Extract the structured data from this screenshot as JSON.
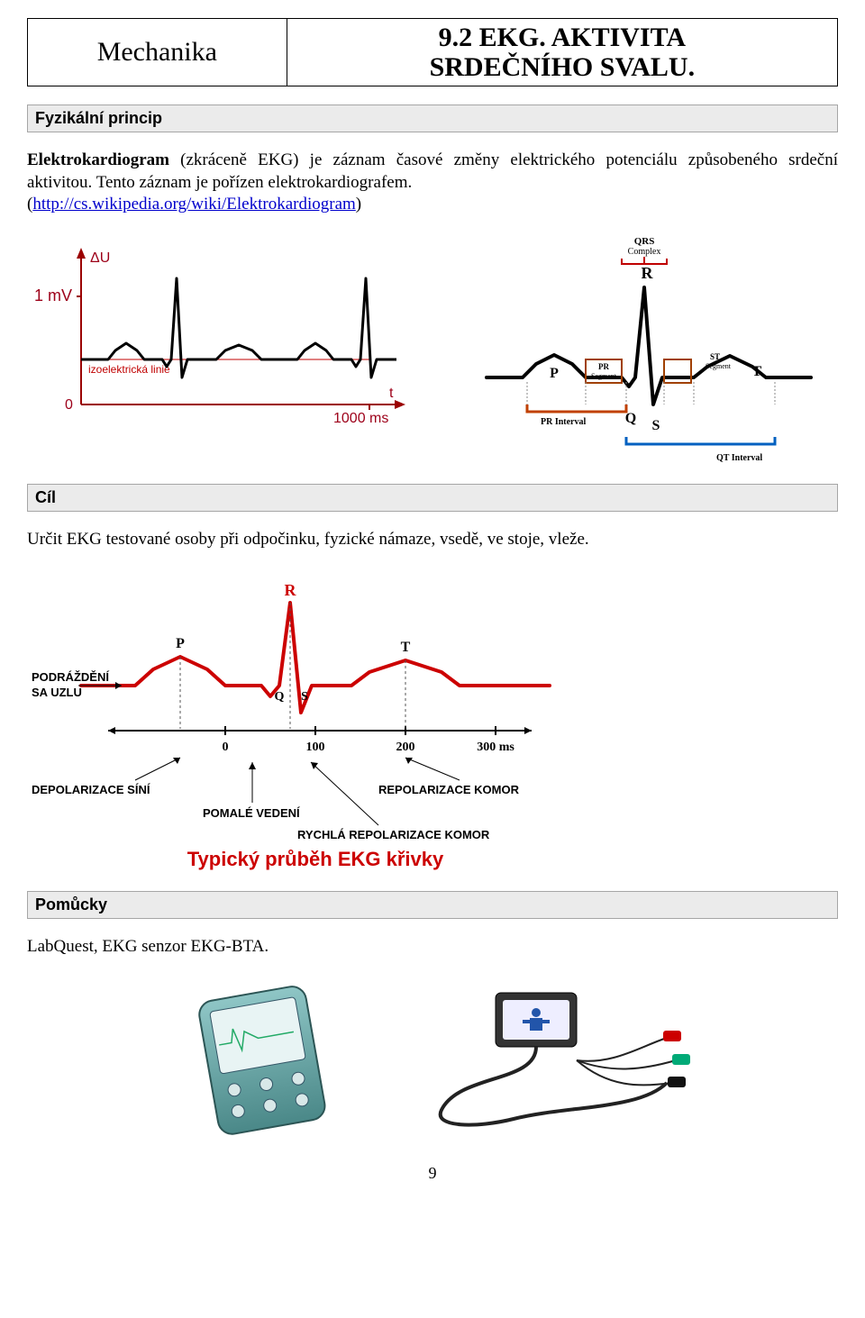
{
  "header": {
    "left": "Mechanika",
    "right_line1": "9.2 EKG. AKTIVITA",
    "right_line2": "SRDEČNÍHO SVALU."
  },
  "section1": {
    "title": "Fyzikální princip",
    "paragraph1_before_bold": "",
    "paragraph1_bold": "Elektrokardiogram",
    "paragraph1_after_bold": " (zkráceně EKG) je záznam časové změny elektrického potenciálu způsobeného srdeční aktivitou. Tento záznam je pořízen elektrokardiografem.",
    "link_prefix": " (",
    "link_text": "http://cs.wikipedia.org/wiki/Elektrokardiogram",
    "link_suffix": ")"
  },
  "fig_left": {
    "y_axis_label": "ΔU",
    "y_tick_1mv": "1 mV",
    "y_tick_0": "0",
    "izo_label": "izoelektrická linie",
    "x_axis_label": "t",
    "x_tick_1000": "1000 ms",
    "axis_color": "#9b0000",
    "line_color": "#000000",
    "izo_color": "#c00000",
    "text_color": "#9d0019",
    "curve": [
      [
        0,
        110
      ],
      [
        30,
        110
      ],
      [
        38,
        100
      ],
      [
        50,
        92
      ],
      [
        62,
        100
      ],
      [
        70,
        110
      ],
      [
        90,
        110
      ],
      [
        95,
        118
      ],
      [
        100,
        110
      ],
      [
        106,
        20
      ],
      [
        112,
        130
      ],
      [
        118,
        110
      ],
      [
        150,
        110
      ],
      [
        160,
        100
      ],
      [
        175,
        94
      ],
      [
        190,
        100
      ],
      [
        200,
        110
      ],
      [
        240,
        110
      ],
      [
        248,
        100
      ],
      [
        260,
        92
      ],
      [
        272,
        100
      ],
      [
        280,
        110
      ],
      [
        300,
        110
      ],
      [
        305,
        118
      ],
      [
        310,
        110
      ],
      [
        316,
        20
      ],
      [
        322,
        130
      ],
      [
        328,
        110
      ],
      [
        350,
        110
      ]
    ]
  },
  "fig_right": {
    "title": "QRS",
    "title2": "Complex",
    "labels": {
      "P": "P",
      "Q": "Q",
      "R": "R",
      "S": "S",
      "T": "T"
    },
    "pr_seg": "PR",
    "pr_seg2": "Segment",
    "st_seg": "ST",
    "st_seg2": "Segment",
    "pr_int": "PR Interval",
    "qt_int": "QT Interval",
    "colors": {
      "trace": "#000000",
      "qrs_bracket": "#c00000",
      "pr_seg": "#a04000",
      "st_seg": "#a04000",
      "pr_int": "#c04000",
      "qt_int": "#0060c0"
    },
    "curve": [
      [
        0,
        120
      ],
      [
        40,
        120
      ],
      [
        55,
        105
      ],
      [
        75,
        95
      ],
      [
        95,
        105
      ],
      [
        110,
        120
      ],
      [
        150,
        120
      ],
      [
        158,
        130
      ],
      [
        165,
        120
      ],
      [
        175,
        20
      ],
      [
        185,
        150
      ],
      [
        195,
        120
      ],
      [
        230,
        120
      ],
      [
        245,
        108
      ],
      [
        270,
        96
      ],
      [
        295,
        108
      ],
      [
        310,
        120
      ],
      [
        360,
        120
      ]
    ]
  },
  "section2": {
    "title": "Cíl",
    "text": "Určit EKG testované osoby při odpočinku, fyzické námaze, vsedě, ve stoje, vleže."
  },
  "fig_ekg_curve": {
    "labels": {
      "P": "P",
      "Q": "Q",
      "R": "R",
      "S": "S",
      "T": "T"
    },
    "x_ticks": [
      "0",
      "100",
      "200",
      "300 ms"
    ],
    "podr1": "PODRÁŽDĚNÍ",
    "podr2": "SA UZLU",
    "dep": "DEPOLARIZACE SÍNÍ",
    "rep": "REPOLARIZACE KOMOR",
    "pom": "POMALÉ VEDENÍ",
    "rych": "RYCHLÁ REPOLARIZACE KOMOR",
    "caption": "Typický průběh EKG křivky",
    "colors": {
      "curve": "#cc0000",
      "axis": "#000000",
      "labels": "#000000",
      "caption": "#cc0000"
    },
    "curve": [
      [
        0,
        100
      ],
      [
        60,
        100
      ],
      [
        80,
        82
      ],
      [
        110,
        68
      ],
      [
        140,
        82
      ],
      [
        160,
        100
      ],
      [
        200,
        100
      ],
      [
        210,
        112
      ],
      [
        220,
        100
      ],
      [
        232,
        8
      ],
      [
        244,
        130
      ],
      [
        256,
        100
      ],
      [
        300,
        100
      ],
      [
        320,
        85
      ],
      [
        360,
        72
      ],
      [
        400,
        85
      ],
      [
        420,
        100
      ],
      [
        520,
        100
      ]
    ]
  },
  "section3": {
    "title": "Pomůcky",
    "text": "LabQuest, EKG senzor EKG-BTA."
  },
  "page_number": "9"
}
